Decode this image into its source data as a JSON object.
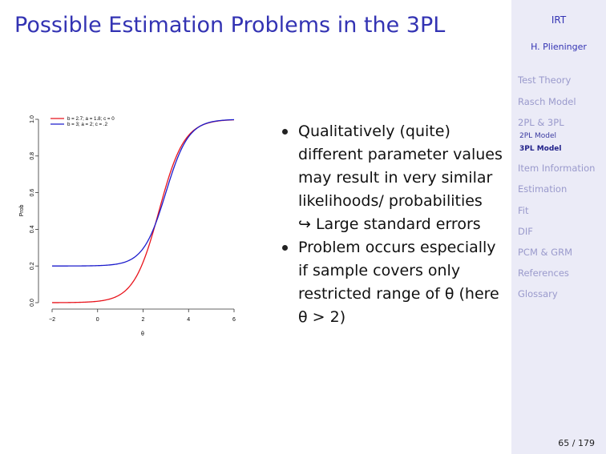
{
  "slide": {
    "title": "Possible Estimation Problems in the 3PL",
    "bullets": [
      {
        "text": "Qualitatively (quite) different parameter values may result in very similar likelihoods/ probabilities",
        "sub": "↪ Large standard errors"
      },
      {
        "text": "Problem occurs especially if sample covers only restricted range of θ (here θ > 2)"
      }
    ]
  },
  "sidebar": {
    "short_title": "IRT",
    "author": "H. Plieninger",
    "sections": [
      {
        "label": "Test Theory"
      },
      {
        "label": "Rasch Model"
      },
      {
        "label": "2PL & 3PL",
        "subs": [
          {
            "label": "2PL Model"
          },
          {
            "label": "3PL Model",
            "active": true
          }
        ]
      },
      {
        "label": "Item Information"
      },
      {
        "label": "Estimation"
      },
      {
        "label": "Fit"
      },
      {
        "label": "DIF"
      },
      {
        "label": "PCM & GRM"
      },
      {
        "label": "References"
      },
      {
        "label": "Glossary"
      }
    ]
  },
  "page": {
    "number": "65 / 179"
  },
  "chart_data": {
    "type": "line",
    "xlabel": "θ",
    "ylabel": "Prob",
    "xlim": [
      -2,
      6
    ],
    "ylim": [
      0,
      1
    ],
    "xticks": [
      "−2",
      "0",
      "2",
      "4",
      "6"
    ],
    "yticks": [
      "0.0",
      "0.2",
      "0.4",
      "0.6",
      "0.8",
      "1.0"
    ],
    "legend_position": "top-left",
    "series": [
      {
        "name": "b = 2.7; a = 1.8; c = 0",
        "color": "#e8141c",
        "b": 2.7,
        "a": 1.8,
        "c": 0
      },
      {
        "name": "b = 3; a = 2; c = .2",
        "color": "#1c1ccc",
        "b": 3,
        "a": 2,
        "c": 0.2
      }
    ]
  }
}
